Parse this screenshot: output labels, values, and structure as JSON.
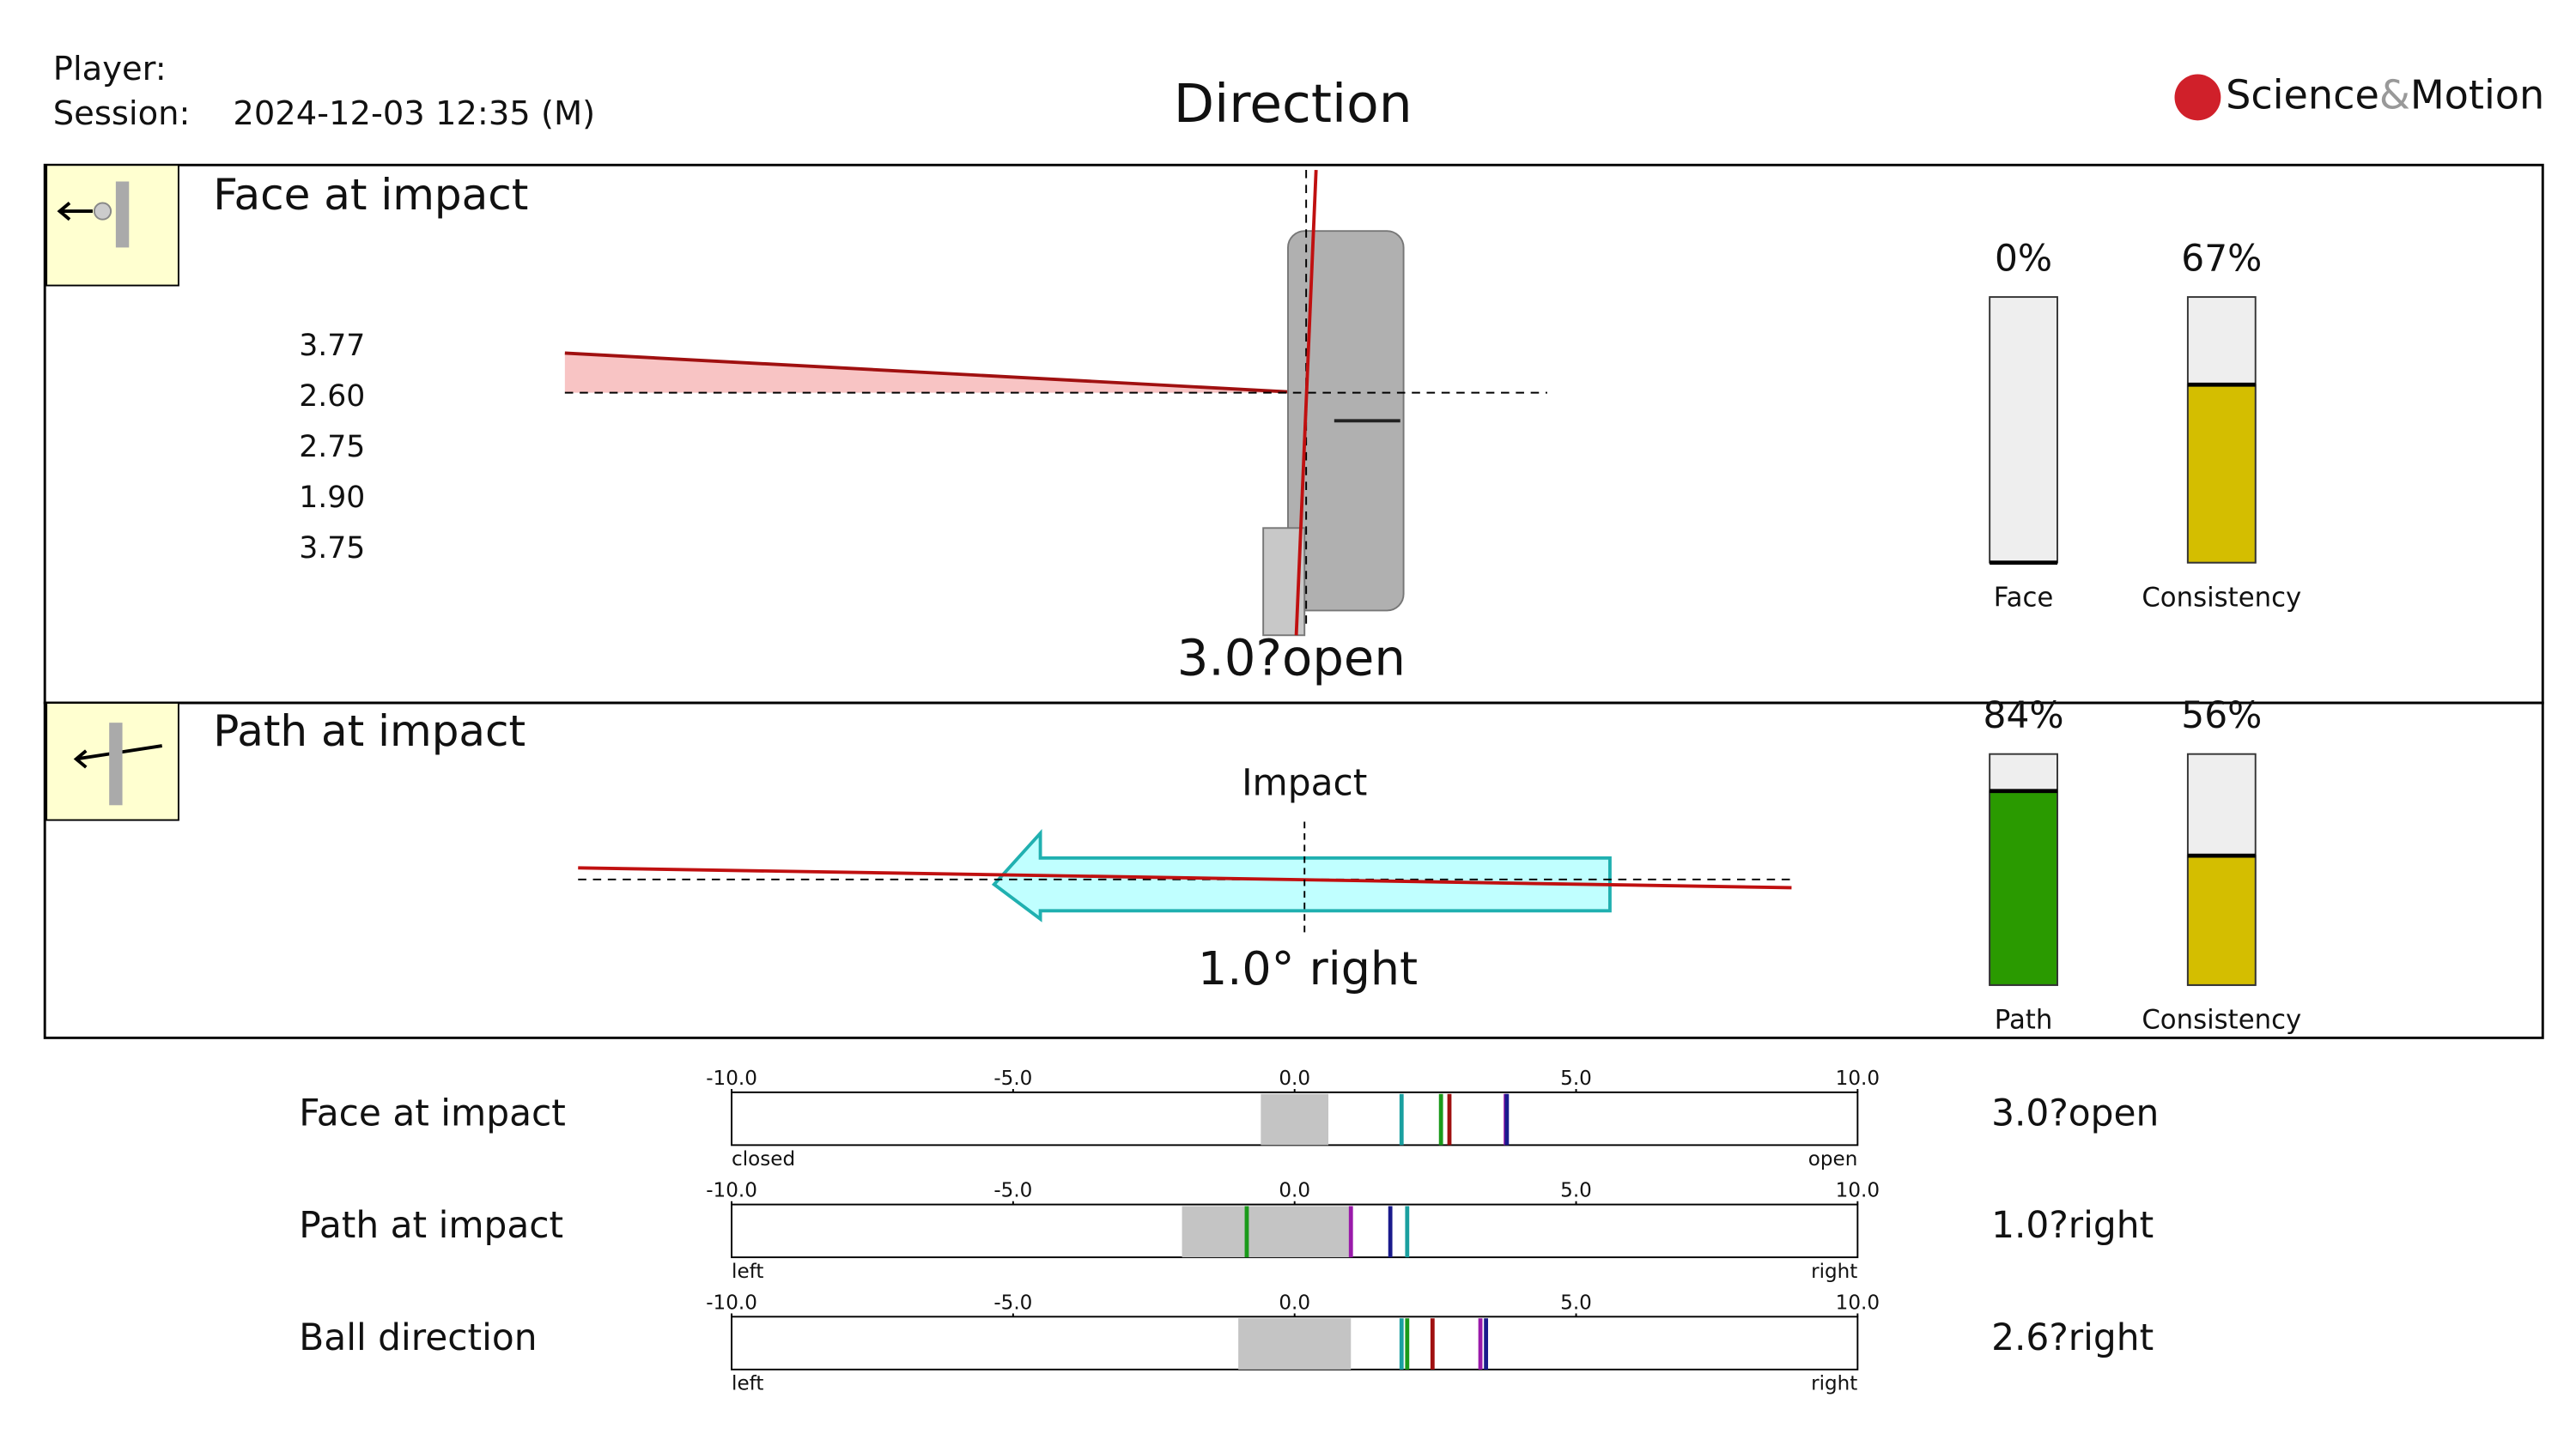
{
  "header": {
    "player_label": "Player:",
    "session_label": "Session:",
    "session": "2024-12-03 12:35 (M)",
    "title": "Direction",
    "logo": [
      "Science",
      "&",
      "Motion"
    ]
  },
  "face_panel": {
    "title": "Face at impact",
    "values": [
      "3.77",
      "2.60",
      "2.75",
      "1.90",
      "3.75"
    ],
    "colors": [
      "#1a1a8c",
      "#1a9a1a",
      "#a01010",
      "#1aa0a0",
      "#9a1aaa"
    ],
    "result": "3.0?open",
    "gauges": {
      "names": [
        "Face",
        "Consistency"
      ],
      "values": [
        0,
        67
      ],
      "value_labels": [
        "0%",
        "67%"
      ],
      "colors": [
        "#2a9a00",
        "#d4be00"
      ]
    }
  },
  "path_panel": {
    "title": "Path at impact",
    "impact_label": "Impact",
    "result": "1.0° right",
    "gauges": {
      "names": [
        "Path",
        "Consistency"
      ],
      "values": [
        84,
        56
      ],
      "value_labels": [
        "84%",
        "56%"
      ],
      "colors": [
        "#2a9a00",
        "#d4be00"
      ]
    }
  },
  "scales": {
    "xlim": [
      -10,
      10
    ],
    "ticks": [
      {
        "value": -10,
        "label": "-10.0"
      },
      {
        "value": -5,
        "label": "-5.0"
      },
      {
        "value": 0,
        "label": "0.0"
      },
      {
        "value": 5,
        "label": "5.0"
      },
      {
        "value": 10,
        "label": "10.0"
      }
    ],
    "rows": [
      {
        "name": "Face at impact",
        "result": "3.0?open",
        "left_label": "closed",
        "right_label": "open",
        "range": [
          -0.6,
          0.6
        ],
        "markers": [
          1.9,
          2.6,
          2.75,
          3.75,
          3.77
        ],
        "colors": [
          "#1aa0a0",
          "#1a9a1a",
          "#a01010",
          "#9a1aaa",
          "#1a1a8c"
        ]
      },
      {
        "name": "Path at impact",
        "result": "1.0?right",
        "left_label": "left",
        "right_label": "right",
        "range": [
          -2.0,
          1.0
        ],
        "markers": [
          -0.85,
          1.0,
          1.7,
          2.0
        ],
        "colors": [
          "#1a9a1a",
          "#9a1aaa",
          "#1a1a8c",
          "#1aa0a0"
        ]
      },
      {
        "name": "Ball direction",
        "result": "2.6?right",
        "left_label": "left",
        "right_label": "right",
        "range": [
          -1.0,
          1.0
        ],
        "markers": [
          1.9,
          2.0,
          2.45,
          3.3,
          3.4
        ],
        "colors": [
          "#1aa0a0",
          "#1a9a1a",
          "#a01010",
          "#9a1aaa",
          "#1a1a8c"
        ]
      }
    ]
  }
}
